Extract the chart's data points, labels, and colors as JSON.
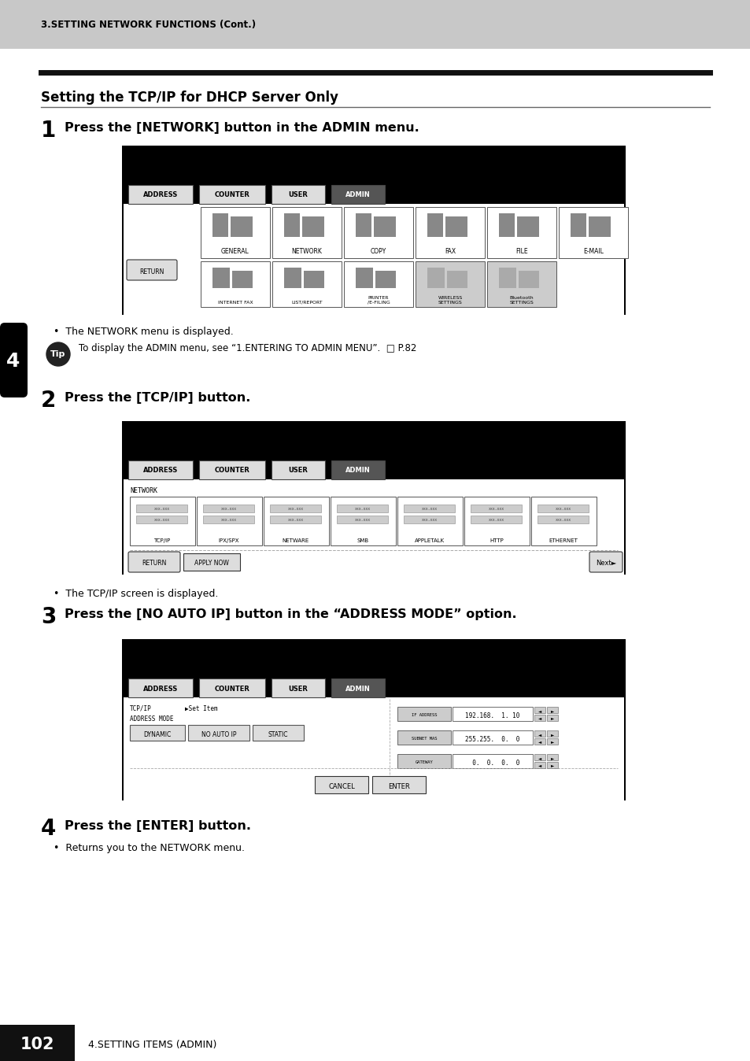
{
  "bg_color": "#ffffff",
  "header_bg": "#c8c8c8",
  "header_text": "3.SETTING NETWORK FUNCTIONS (Cont.)",
  "section_title": "Setting the TCP/IP for DHCP Server Only",
  "step1_title": "Press the [NETWORK] button in the ADMIN menu.",
  "step1_bullet": "The NETWORK menu is displayed.",
  "tip_text": "To display the ADMIN menu, see “1.ENTERING TO ADMIN MENU”.  □ P.82",
  "step2_title": "Press the [TCP/IP] button.",
  "step2_bullet": "The TCP/IP screen is displayed.",
  "step3_title": "Press the [NO AUTO IP] button in the “ADDRESS MODE” option.",
  "step4_title": "Press the [ENTER] button.",
  "step4_bullet": "Returns you to the NETWORK menu.",
  "footer_page": "102",
  "footer_text": "4.SETTING ITEMS (ADMIN)",
  "side_tab_label": "4",
  "screen1_tabs": [
    "ADDRESS",
    "COUNTER",
    "USER",
    "ADMIN"
  ],
  "screen1_icons_r1": [
    "GENERAL",
    "NETWORK",
    "COPY",
    "FAX",
    "FILE",
    "E-MAIL"
  ],
  "screen1_icons_r2": [
    "INTERNET FAX",
    "LIST/REPORT",
    "PRINTER\n/E-FILING",
    "WIRELESS\nSETTINGS",
    "Bluetooth\nSETTINGS"
  ],
  "screen2_icons": [
    "TCP/IP",
    "IPX/SPX",
    "NETWARE",
    "SMB",
    "APPLETALK",
    "HTTP",
    "ETHERNET"
  ],
  "addr_btns": [
    "DYNAMIC",
    "NO AUTO IP",
    "STATIC"
  ],
  "ip_fields": [
    [
      "IF ADDRESS",
      "192.168.  1. 10"
    ],
    [
      "SUBNET MAS",
      "255.255.  0.  0"
    ],
    [
      "GATEWAY",
      "  0.  0.  0.  0"
    ]
  ]
}
